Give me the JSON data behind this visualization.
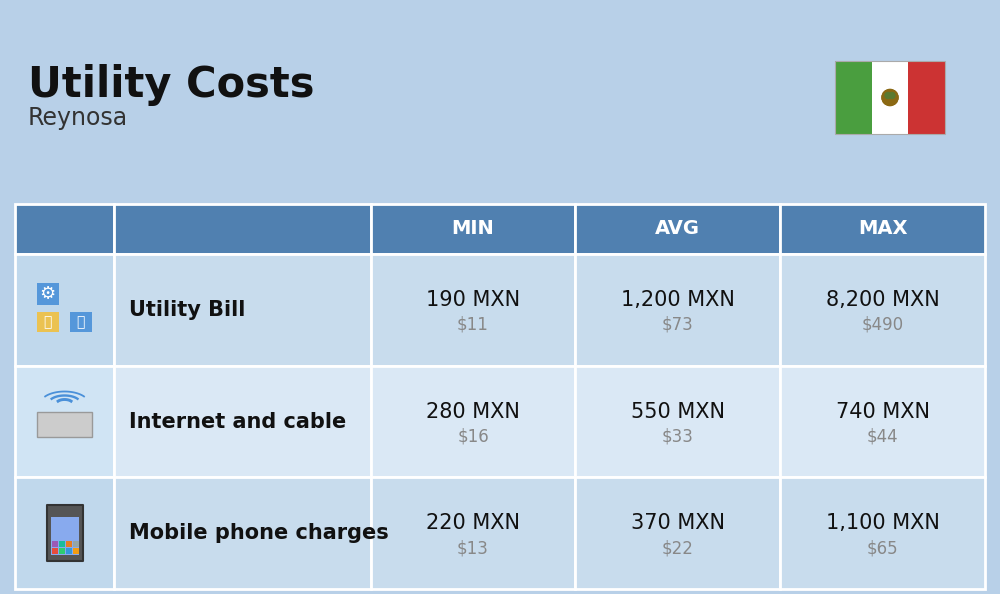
{
  "title": "Utility Costs",
  "subtitle": "Reynosa",
  "background_color": "#b8d0e8",
  "header_color": "#5080b0",
  "header_text_color": "#ffffff",
  "row_color_1": "#c8dced",
  "row_color_2": "#dae8f5",
  "icon_col_color_1": "#c0d8ec",
  "icon_col_color_2": "#d0e4f4",
  "border_color": "#ffffff",
  "flag_green": "#4a9e3f",
  "flag_white": "#ffffff",
  "flag_red": "#cc3333",
  "columns": [
    "",
    "",
    "MIN",
    "AVG",
    "MAX"
  ],
  "rows": [
    {
      "label": "Utility Bill",
      "min_mxn": "190 MXN",
      "min_usd": "$11",
      "avg_mxn": "1,200 MXN",
      "avg_usd": "$73",
      "max_mxn": "8,200 MXN",
      "max_usd": "$490"
    },
    {
      "label": "Internet and cable",
      "min_mxn": "280 MXN",
      "min_usd": "$16",
      "avg_mxn": "550 MXN",
      "avg_usd": "$33",
      "max_mxn": "740 MXN",
      "max_usd": "$44"
    },
    {
      "label": "Mobile phone charges",
      "min_mxn": "220 MXN",
      "min_usd": "$13",
      "avg_mxn": "370 MXN",
      "avg_usd": "$22",
      "max_mxn": "1,100 MXN",
      "max_usd": "$65"
    }
  ],
  "title_fontsize": 30,
  "subtitle_fontsize": 17,
  "header_fontsize": 14,
  "cell_mxn_fontsize": 15,
  "cell_usd_fontsize": 12,
  "label_fontsize": 15,
  "usd_color": "#888888",
  "label_color": "#111111",
  "mxn_color": "#111111"
}
